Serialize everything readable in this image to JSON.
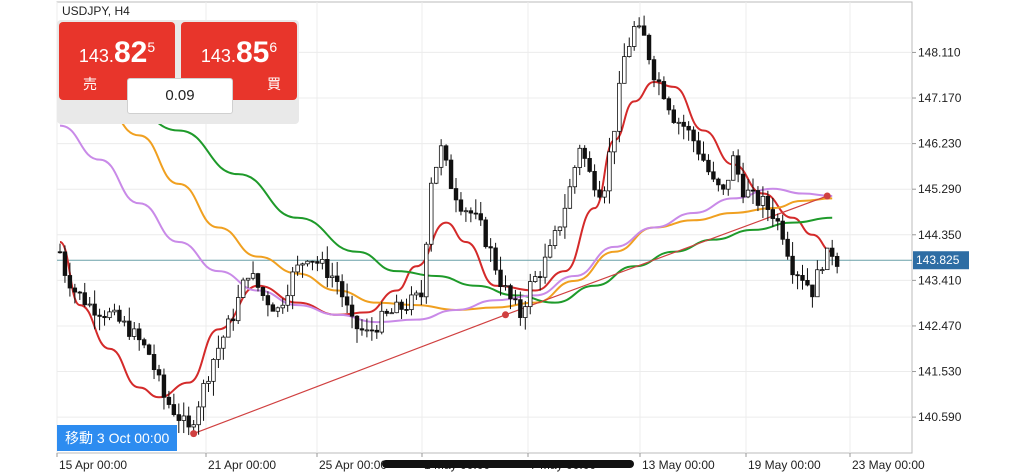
{
  "instrument": {
    "label": "USDJPY, H4"
  },
  "trade_panel": {
    "sell": {
      "price_small": "143.",
      "price_big": "82",
      "price_sup": "5",
      "label": "売"
    },
    "buy": {
      "price_small": "143.",
      "price_big": "85",
      "price_sup": "6",
      "label": "買"
    },
    "spread": "0.09"
  },
  "crosshair_badge": "移動 3 Oct 00:00",
  "colors": {
    "trade_red": "#e8352b",
    "badge_blue": "#2d8cf0",
    "bull": "#ffffff",
    "bear": "#111111",
    "ma_red": "#d42a2a",
    "ma_orange": "#f0a020",
    "ma_green": "#1e9a2a",
    "ma_violet": "#c98ae8",
    "trendline": "#d04040",
    "current_price_bg": "#2e6da4"
  },
  "chart_data": {
    "type": "line",
    "title": "",
    "xlabel": "",
    "ylabel": "",
    "ylim": [
      139.85,
      149.15
    ],
    "x_tick_labels": [
      "15 Apr 00:00",
      "21 Apr 00:00",
      "25 Apr 00:00",
      "1 May 00:00",
      "7 May 00:00",
      "13 May 00:00",
      "19 May 00:00",
      "23 May 00:00"
    ],
    "y_ticks": [
      148.11,
      147.17,
      146.23,
      145.29,
      144.35,
      143.41,
      142.47,
      141.53,
      140.59
    ],
    "y_tick_labels": [
      "148.110",
      "147.170",
      "146.230",
      "145.290",
      "144.350",
      "143.410",
      "142.470",
      "141.530",
      "140.590"
    ],
    "current_price": {
      "value": 143.825,
      "label": "143.825"
    },
    "price_anchors": [
      [
        0,
        144.0
      ],
      [
        1,
        143.6
      ],
      [
        3,
        143.2
      ],
      [
        6,
        142.9
      ],
      [
        10,
        142.7
      ],
      [
        14,
        142.4
      ],
      [
        18,
        141.9
      ],
      [
        21,
        141.0
      ],
      [
        24,
        140.6
      ],
      [
        26,
        140.3
      ],
      [
        28,
        140.9
      ],
      [
        31,
        141.8
      ],
      [
        35,
        142.7
      ],
      [
        38,
        143.6
      ],
      [
        41,
        143.1
      ],
      [
        44,
        142.8
      ],
      [
        47,
        143.5
      ],
      [
        50,
        143.95
      ],
      [
        53,
        143.7
      ],
      [
        56,
        143.4
      ],
      [
        59,
        142.5
      ],
      [
        62,
        142.3
      ],
      [
        65,
        142.6
      ],
      [
        68,
        142.8
      ],
      [
        70,
        142.9
      ],
      [
        73,
        143.1
      ],
      [
        75,
        145.5
      ],
      [
        77,
        146.1
      ],
      [
        79,
        145.4
      ],
      [
        81,
        145.0
      ],
      [
        83,
        144.8
      ],
      [
        85,
        144.5
      ],
      [
        87,
        144.0
      ],
      [
        89,
        143.4
      ],
      [
        91,
        143.0
      ],
      [
        93,
        142.7
      ],
      [
        95,
        143.3
      ],
      [
        97,
        143.6
      ],
      [
        99,
        144.0
      ],
      [
        101,
        144.6
      ],
      [
        103,
        145.3
      ],
      [
        105,
        146.2
      ],
      [
        107,
        145.6
      ],
      [
        109,
        145.3
      ],
      [
        110,
        145.4
      ],
      [
        112,
        146.6
      ],
      [
        114,
        148.0
      ],
      [
        116,
        148.6
      ],
      [
        118,
        148.4
      ],
      [
        120,
        147.7
      ],
      [
        122,
        147.3
      ],
      [
        124,
        146.8
      ],
      [
        126,
        146.6
      ],
      [
        128,
        146.3
      ],
      [
        130,
        145.9
      ],
      [
        132,
        145.4
      ],
      [
        134,
        145.2
      ],
      [
        136,
        145.9
      ],
      [
        138,
        145.3
      ],
      [
        140,
        145.1
      ],
      [
        142,
        145.0
      ],
      [
        144,
        144.8
      ],
      [
        146,
        144.4
      ],
      [
        148,
        143.7
      ],
      [
        150,
        143.5
      ],
      [
        152,
        143.2
      ],
      [
        154,
        143.8
      ],
      [
        156,
        144.0
      ],
      [
        157,
        143.83
      ]
    ],
    "series": [
      {
        "key": "ma_red",
        "color": "#d42a2a",
        "points": [
          [
            0,
            144.2
          ],
          [
            4,
            142.9
          ],
          [
            10,
            142.0
          ],
          [
            16,
            141.2
          ],
          [
            20,
            141.0
          ],
          [
            26,
            141.3
          ],
          [
            32,
            142.4
          ],
          [
            40,
            143.3
          ],
          [
            48,
            142.95
          ],
          [
            56,
            142.7
          ],
          [
            62,
            142.75
          ],
          [
            68,
            143.2
          ],
          [
            72,
            143.7
          ],
          [
            78,
            144.6
          ],
          [
            82,
            144.2
          ],
          [
            88,
            143.3
          ],
          [
            96,
            143.2
          ],
          [
            102,
            143.6
          ],
          [
            108,
            144.9
          ],
          [
            112,
            146.3
          ],
          [
            116,
            147.1
          ],
          [
            120,
            147.5
          ],
          [
            124,
            147.4
          ],
          [
            130,
            146.5
          ],
          [
            136,
            145.8
          ],
          [
            142,
            145.2
          ],
          [
            148,
            144.7
          ],
          [
            152,
            144.35
          ],
          [
            156,
            144.0
          ]
        ]
      },
      {
        "key": "ma_orange",
        "color": "#f0a020",
        "points": [
          [
            0,
            147.7
          ],
          [
            8,
            147.1
          ],
          [
            16,
            146.4
          ],
          [
            24,
            145.4
          ],
          [
            32,
            144.5
          ],
          [
            40,
            143.9
          ],
          [
            48,
            143.55
          ],
          [
            56,
            143.2
          ],
          [
            64,
            142.95
          ],
          [
            72,
            142.9
          ],
          [
            80,
            142.8
          ],
          [
            88,
            142.85
          ],
          [
            96,
            142.95
          ],
          [
            104,
            143.4
          ],
          [
            112,
            144.0
          ],
          [
            120,
            144.5
          ],
          [
            128,
            144.65
          ],
          [
            136,
            144.8
          ],
          [
            144,
            144.9
          ],
          [
            150,
            145.05
          ],
          [
            156,
            145.1
          ]
        ]
      },
      {
        "key": "ma_green",
        "color": "#1e9a2a",
        "points": [
          [
            0,
            148.0
          ],
          [
            12,
            147.2
          ],
          [
            24,
            146.5
          ],
          [
            36,
            145.6
          ],
          [
            48,
            144.7
          ],
          [
            60,
            144.0
          ],
          [
            68,
            143.6
          ],
          [
            76,
            143.5
          ],
          [
            84,
            143.3
          ],
          [
            92,
            143.1
          ],
          [
            100,
            142.95
          ],
          [
            108,
            143.3
          ],
          [
            116,
            143.7
          ],
          [
            124,
            144.0
          ],
          [
            132,
            144.25
          ],
          [
            140,
            144.45
          ],
          [
            148,
            144.6
          ],
          [
            156,
            144.7
          ]
        ]
      },
      {
        "key": "ma_violet",
        "color": "#c98ae8",
        "points": [
          [
            0,
            146.6
          ],
          [
            8,
            145.9
          ],
          [
            16,
            145.0
          ],
          [
            24,
            144.2
          ],
          [
            32,
            143.6
          ],
          [
            40,
            143.2
          ],
          [
            48,
            142.9
          ],
          [
            56,
            142.7
          ],
          [
            64,
            142.55
          ],
          [
            72,
            142.6
          ],
          [
            80,
            142.8
          ],
          [
            88,
            143.0
          ],
          [
            96,
            143.1
          ],
          [
            104,
            143.5
          ],
          [
            112,
            144.1
          ],
          [
            120,
            144.5
          ],
          [
            128,
            144.8
          ],
          [
            136,
            145.1
          ],
          [
            144,
            145.3
          ],
          [
            150,
            145.2
          ],
          [
            156,
            145.15
          ]
        ]
      },
      {
        "key": "trendline",
        "color": "#d04040",
        "points": [
          [
            27,
            140.25
          ],
          [
            90,
            142.7
          ],
          [
            155,
            145.15
          ]
        ]
      }
    ]
  }
}
